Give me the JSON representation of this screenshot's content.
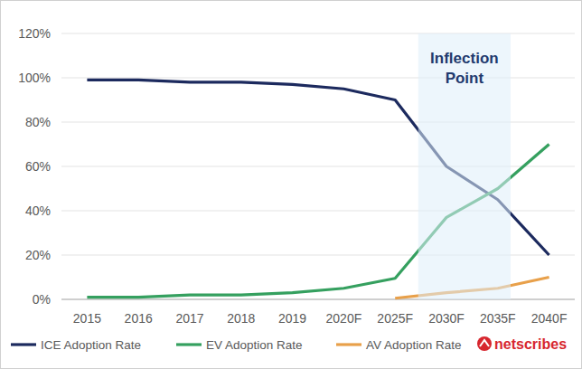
{
  "chart_data": {
    "type": "line",
    "categories": [
      "2015",
      "2016",
      "2017",
      "2018",
      "2019",
      "2020F",
      "2025F",
      "2030F",
      "2035F",
      "2040F"
    ],
    "series": [
      {
        "name": "ICE Adoption Rate",
        "color": "#1c2a5e",
        "values": [
          99,
          99,
          98,
          98,
          97,
          95,
          90,
          60,
          45,
          20
        ]
      },
      {
        "name": "EV Adoption Rate",
        "color": "#35a05f",
        "values": [
          1,
          1,
          2,
          2,
          3,
          5,
          9.5,
          37,
          50,
          70
        ]
      },
      {
        "name": "AV Adoption Rate",
        "color": "#e8a04a",
        "values": [
          null,
          null,
          null,
          null,
          null,
          null,
          0.5,
          3,
          5,
          10
        ]
      }
    ],
    "ylim": [
      0,
      120
    ],
    "yticks": [
      {
        "value": 0,
        "label": "0%"
      },
      {
        "value": 20,
        "label": "20%"
      },
      {
        "value": 40,
        "label": "40%"
      },
      {
        "value": 60,
        "label": "60%"
      },
      {
        "value": 80,
        "label": "80%"
      },
      {
        "value": 100,
        "label": "100%"
      },
      {
        "value": 120,
        "label": "120%"
      }
    ],
    "grid": true,
    "legend": "bottom",
    "annotations": [
      {
        "text": "Inflection Point",
        "from": "2030F",
        "to": "2035F"
      }
    ],
    "brand": "netscribes"
  }
}
